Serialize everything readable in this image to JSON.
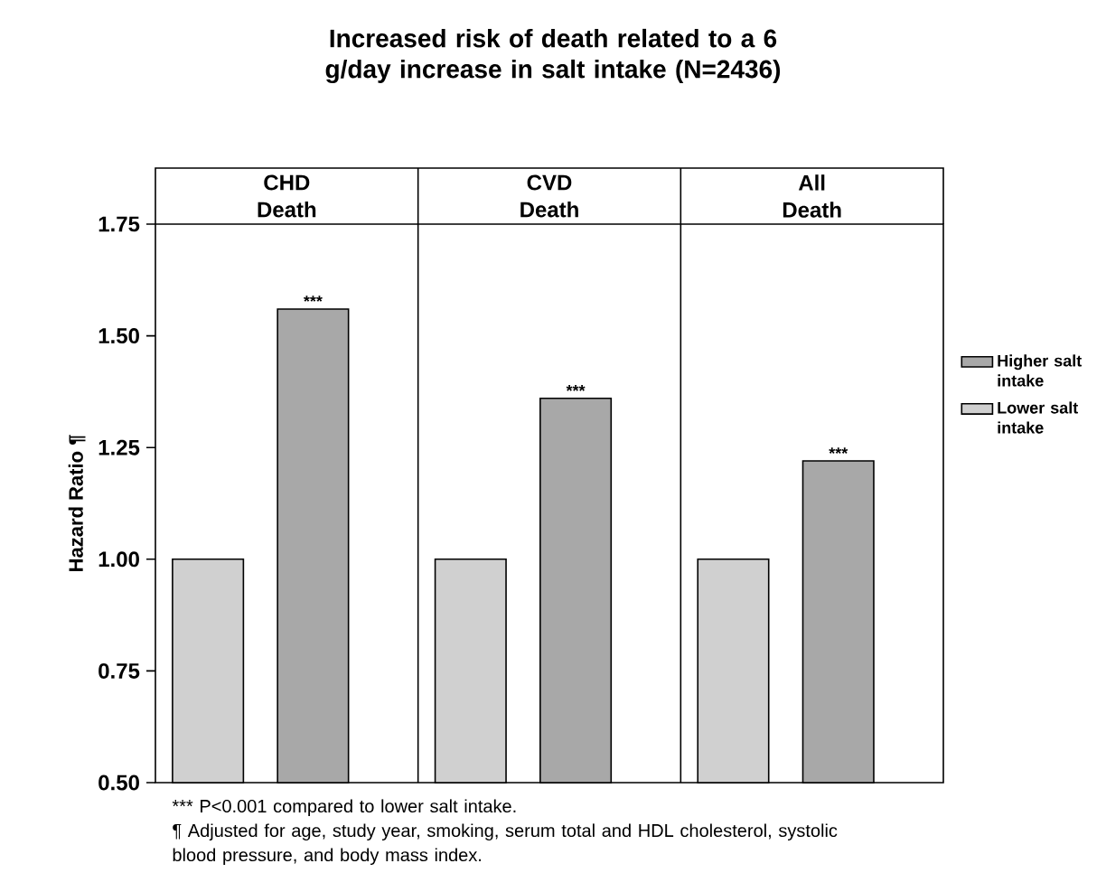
{
  "chart_data": {
    "type": "bar",
    "title": "Increased risk of death related to a 6 g/day increase in salt intake (N=2436)",
    "categories": [
      "CHD Death",
      "CVD Death",
      "All Death"
    ],
    "series": [
      {
        "name": "Lower salt intake",
        "color": "#d0d0d0",
        "values": [
          1.0,
          1.0,
          1.0
        ]
      },
      {
        "name": "Higher salt intake",
        "color": "#a8a8a8",
        "values": [
          1.56,
          1.36,
          1.22
        ]
      }
    ],
    "ylabel": "Hazard Ratio ¶",
    "ylim": [
      0.5,
      1.75
    ],
    "yticks": [
      {
        "value": 0.5,
        "label": "0.50"
      },
      {
        "value": 0.75,
        "label": "0.75"
      },
      {
        "value": 1.0,
        "label": "1.00"
      },
      {
        "value": 1.25,
        "label": "1.25"
      },
      {
        "value": 1.5,
        "label": "1.50"
      },
      {
        "value": 1.75,
        "label": "1.75"
      }
    ],
    "annotations": [
      {
        "text": "***",
        "x": "CHD Death",
        "y": 1.56
      },
      {
        "text": "***",
        "x": "CVD Death",
        "y": 1.36
      },
      {
        "text": "***",
        "x": "All Death",
        "y": 1.22
      },
      "*** P<0.001 compared to lower salt intake.",
      "¶ Adjusted for age, study year, smoking, serum total and HDL cholesterol, systolic blood pressure, and body mass index."
    ],
    "legend": "right",
    "grid": false
  }
}
